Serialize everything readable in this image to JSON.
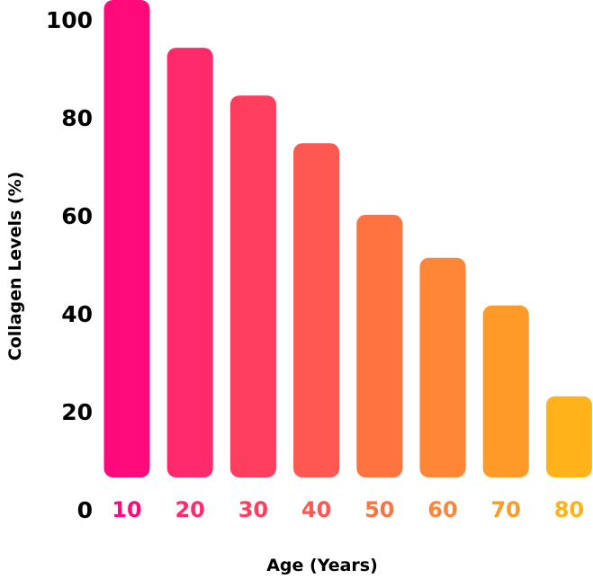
{
  "chart_data": {
    "type": "bar",
    "title": "",
    "xlabel": "Age (Years)",
    "ylabel": "Collagen Levels (%)",
    "categories": [
      "10",
      "20",
      "30",
      "40",
      "50",
      "60",
      "70",
      "80"
    ],
    "values": [
      100,
      90,
      80,
      70,
      55,
      46,
      36,
      17
    ],
    "ylim": [
      0,
      100
    ],
    "yticks": [
      "0",
      "20",
      "40",
      "60",
      "80",
      "100"
    ],
    "grid": false,
    "colors": [
      "#ff0a7a",
      "#ff2a6b",
      "#ff3e5f",
      "#ff5752",
      "#ff7340",
      "#ff8636",
      "#ff9a28",
      "#ffb21a"
    ]
  }
}
